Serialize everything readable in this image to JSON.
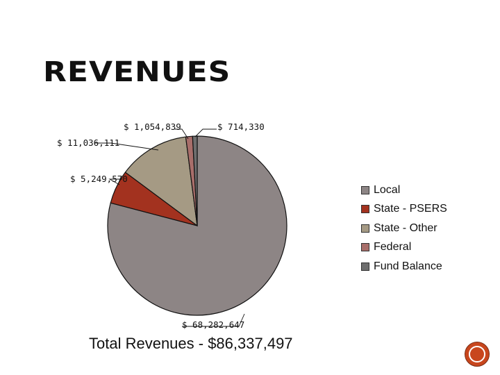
{
  "slide": {
    "title": "REVENUES",
    "total_text": "Total Revenues - $86,337,497"
  },
  "chart_data": {
    "type": "pie",
    "title": "",
    "slices": [
      {
        "name": "Local",
        "value": 68282647,
        "label": "$ 68,282,647",
        "color": "#8d8585"
      },
      {
        "name": "State - PSERS",
        "value": 5249570,
        "label": "$ 5,249,570",
        "color": "#a3321f"
      },
      {
        "name": "State - Other",
        "value": 11036111,
        "label": "$ 11,036,111",
        "color": "#a59a84"
      },
      {
        "name": "Federal",
        "value": 1054839,
        "label": "$ 1,054,839",
        "color": "#a86e6a"
      },
      {
        "name": "Fund Balance",
        "value": 714330,
        "label": "$ 714,330",
        "color": "#6e6e6e"
      }
    ],
    "legend_position": "right"
  },
  "legend": {
    "items": [
      "Local",
      "State - PSERS",
      "State - Other",
      "Federal",
      "Fund Balance"
    ]
  },
  "icons": {
    "nav": "next-slide-icon"
  }
}
